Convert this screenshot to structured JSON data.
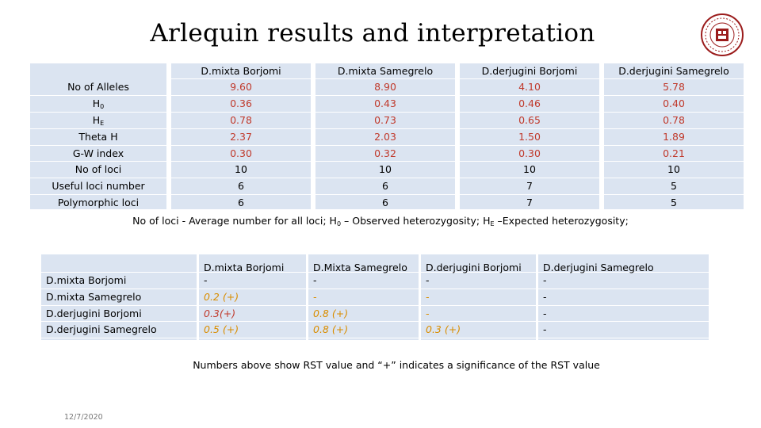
{
  "title": "Arlequin results and interpretation",
  "table1": {
    "row_labels": [
      "No of Alleles",
      "H",
      "H",
      "Theta H",
      "G-W index",
      "No of loci",
      "Useful loci number",
      "Polymorphic loci"
    ],
    "row_label_subs": [
      "",
      "0",
      "E",
      "",
      "",
      "",
      "",
      ""
    ],
    "columns": [
      {
        "header": "D.mixta Borjomi",
        "values": [
          "9.60",
          "0.36",
          "0.78",
          "2.37",
          "0.30",
          "10",
          "6",
          "6"
        ]
      },
      {
        "header": "D.mixta Samegrelo",
        "values": [
          "8.90",
          "0.43",
          "0.73",
          "2.03",
          "0.32",
          "10",
          "6",
          "6"
        ]
      },
      {
        "header": "D.derjugini Borjomi",
        "values": [
          "4.10",
          "0.46",
          "0.65",
          "1.50",
          "0.30",
          "10",
          "7",
          "7"
        ]
      },
      {
        "header": "D.derjugini Samegrelo",
        "values": [
          "5.78",
          "0.40",
          "0.78",
          "1.89",
          "0.21",
          "10",
          "5",
          "5"
        ]
      }
    ]
  },
  "note1": {
    "part1": "No of loci - Average number for all loci; H",
    "sub1": "0",
    "part2": " – Observed heterozygosity; H",
    "sub2": "E",
    "part3": " –Expected heterozygosity;"
  },
  "table2": {
    "row_labels": [
      "D.mixta Borjomi",
      "D.mixta Samegrelo",
      "D.derjugini Borjomi",
      "D.derjugini Samegrelo"
    ],
    "columns": [
      {
        "header": "D.mixta Borjomi",
        "values": [
          "-",
          "0.2 (+)",
          "0.3(+)",
          "0.5 (+)"
        ]
      },
      {
        "header": "D.Mixta Samegrelo",
        "values": [
          "-",
          "-",
          "0.8 (+)",
          "0.8 (+)"
        ]
      },
      {
        "header": "D.derjugini Borjomi",
        "values": [
          "-",
          "-",
          "-",
          "0.3 (+)"
        ]
      },
      {
        "header": "D.derjugini Samegrelo",
        "values": [
          "-",
          "-",
          "-",
          "-"
        ]
      }
    ]
  },
  "note2": "Numbers above show RST value and “+” indicates a significance of the RST value",
  "date": "12/7/2020",
  "colors": {
    "table_fill": "#dbe4f1",
    "value_red": "#c0392b",
    "significant_orange": "#d98d00"
  }
}
